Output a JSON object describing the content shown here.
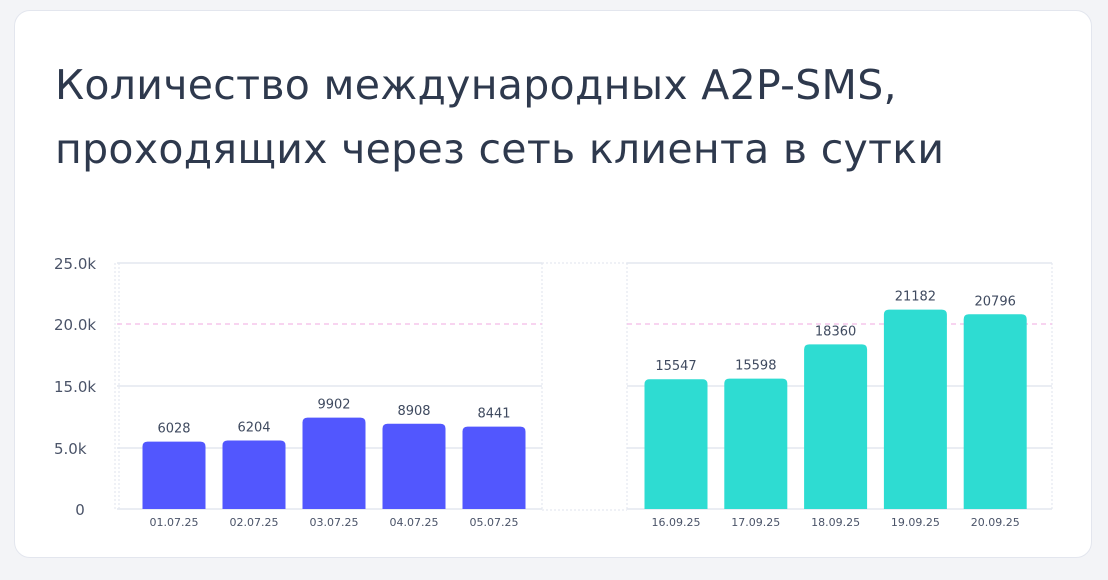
{
  "title_lines": [
    "Количество международных A2P-SMS,",
    "проходящих через сеть клиента в сутки"
  ],
  "chart_data": {
    "type": "bar",
    "title": "Количество международных A2P-SMS, проходящих через сеть клиента в сутки",
    "y_ticks": [
      0,
      5000,
      15000,
      20000,
      25000
    ],
    "y_tick_labels": [
      "0",
      "5.0k",
      "15.0k",
      "20.0k",
      "25.0k"
    ],
    "ylim": [
      0,
      25000
    ],
    "reference_line": 20000,
    "panels": [
      {
        "color": "#5257fe",
        "categories": [
          "01.07.25",
          "02.07.25",
          "03.07.25",
          "04.07.25",
          "05.07.25"
        ],
        "values": [
          6028,
          6204,
          9902,
          8908,
          8441
        ]
      },
      {
        "color": "#2edcd2",
        "categories": [
          "16.09.25",
          "17.09.25",
          "18.09.25",
          "19.09.25",
          "20.09.25"
        ],
        "values": [
          15547,
          15598,
          18360,
          21182,
          20796
        ]
      }
    ]
  }
}
